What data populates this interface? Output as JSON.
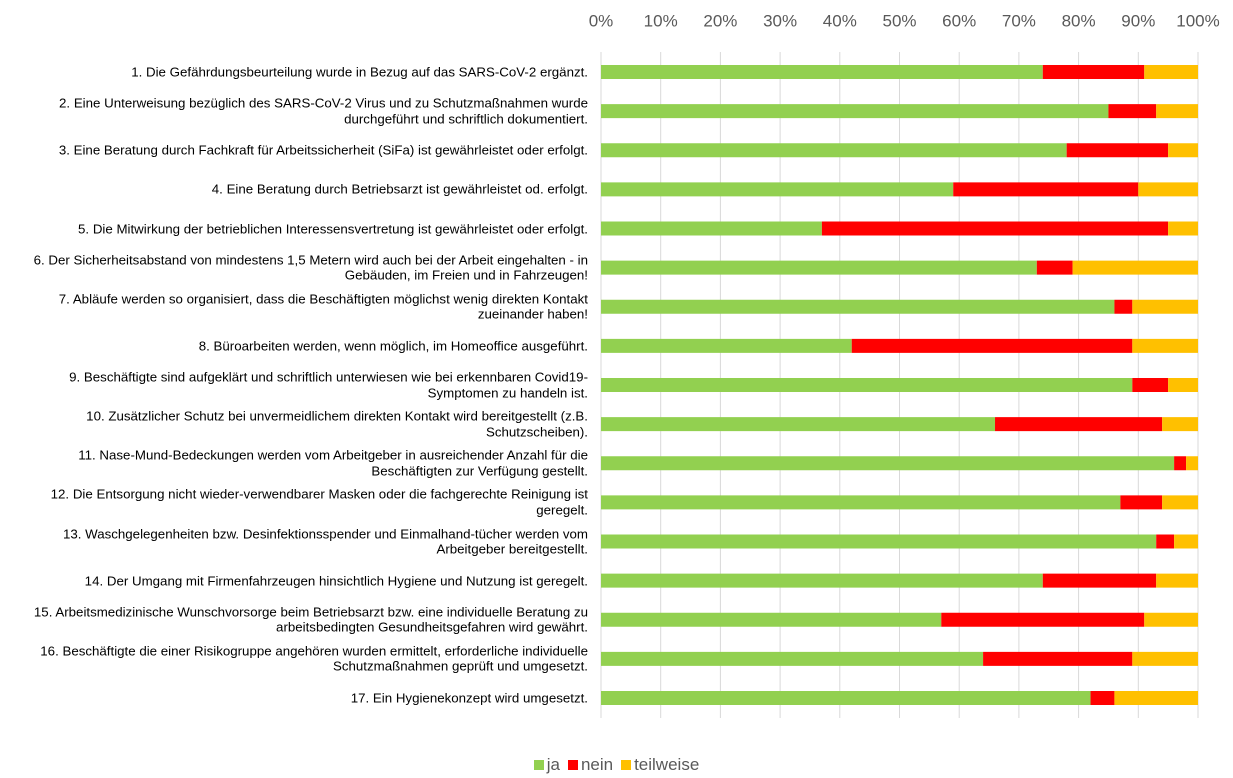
{
  "chart_data": {
    "type": "bar",
    "orientation": "horizontal",
    "stacked": true,
    "categories": [
      "1. Die Gefährdungsbeurteilung wurde in Bezug auf das SARS-CoV-2 ergänzt.",
      "2. Eine Unterweisung bezüglich des SARS-CoV-2 Virus und zu Schutzmaßnahmen wurde durchgeführt und schriftlich dokumentiert.",
      "3. Eine Beratung durch Fachkraft für Arbeitssicherheit (SiFa) ist gewährleistet oder erfolgt.",
      "4. Eine Beratung durch Betriebsarzt ist gewährleistet od. erfolgt.",
      "5. Die Mitwirkung der betrieblichen Interessensvertretung ist gewährleistet oder erfolgt.",
      "6. Der Sicherheitsabstand von mindestens 1,5 Metern wird auch bei der Arbeit eingehalten - in Gebäuden, im Freien und in Fahrzeugen!",
      "7. Abläufe werden so organisiert, dass die Beschäftigten möglichst wenig direkten Kontakt zueinander haben!",
      "8. Büroarbeiten werden, wenn möglich, im Homeoffice ausgeführt.",
      "9. Beschäftigte sind aufgeklärt und schriftlich unterwiesen wie bei erkennbaren Covid19-Symptomen zu handeln ist.",
      "10. Zusätzlicher Schutz bei unvermeidlichem direkten Kontakt wird bereitgestellt (z.B. Schutzscheiben).",
      "11. Nase-Mund-Bedeckungen werden vom Arbeitgeber in ausreichender Anzahl für die Beschäftigten zur Verfügung gestellt.",
      "12. Die Entsorgung nicht wieder-verwendbarer Masken oder die fachgerechte Reinigung ist geregelt.",
      "13. Waschgelegenheiten bzw. Desinfektionsspender und Einmalhand-tücher werden vom Arbeitgeber bereitgestellt.",
      "14. Der Umgang mit Firmenfahrzeugen hinsichtlich Hygiene und Nutzung ist geregelt.",
      "15. Arbeitsmedizinische Wunschvorsorge beim Betriebsarzt bzw. eine individuelle Beratung zu arbeitsbedingten Gesundheitsgefahren wird gewährt.",
      "16. Beschäftigte die einer Risikogruppe angehören wurden ermittelt, erforderliche individuelle Schutzmaßnahmen geprüft und umgesetzt.",
      "17. Ein Hygienekonzept wird umgesetzt."
    ],
    "series": [
      {
        "name": "ja",
        "color": "#92d050",
        "values": [
          74,
          85,
          78,
          59,
          37,
          73,
          86,
          42,
          89,
          66,
          96,
          87,
          93,
          74,
          57,
          64,
          82
        ]
      },
      {
        "name": "nein",
        "color": "#ff0000",
        "values": [
          17,
          8,
          17,
          31,
          58,
          6,
          3,
          47,
          6,
          28,
          2,
          7,
          3,
          19,
          34,
          25,
          4
        ]
      },
      {
        "name": "teilweise",
        "color": "#ffc000",
        "values": [
          9,
          7,
          5,
          10,
          5,
          21,
          11,
          11,
          5,
          6,
          2,
          6,
          4,
          7,
          9,
          11,
          14
        ]
      }
    ],
    "xlim": [
      0,
      100
    ],
    "xticks": [
      {
        "value": 0,
        "label": "0%"
      },
      {
        "value": 10,
        "label": "10%"
      },
      {
        "value": 20,
        "label": "20%"
      },
      {
        "value": 30,
        "label": "30%"
      },
      {
        "value": 40,
        "label": "40%"
      },
      {
        "value": 50,
        "label": "50%"
      },
      {
        "value": 60,
        "label": "60%"
      },
      {
        "value": 70,
        "label": "70%"
      },
      {
        "value": 80,
        "label": "80%"
      },
      {
        "value": 90,
        "label": "90%"
      },
      {
        "value": 100,
        "label": "100%"
      }
    ],
    "grid": true,
    "legend": "bottom"
  }
}
